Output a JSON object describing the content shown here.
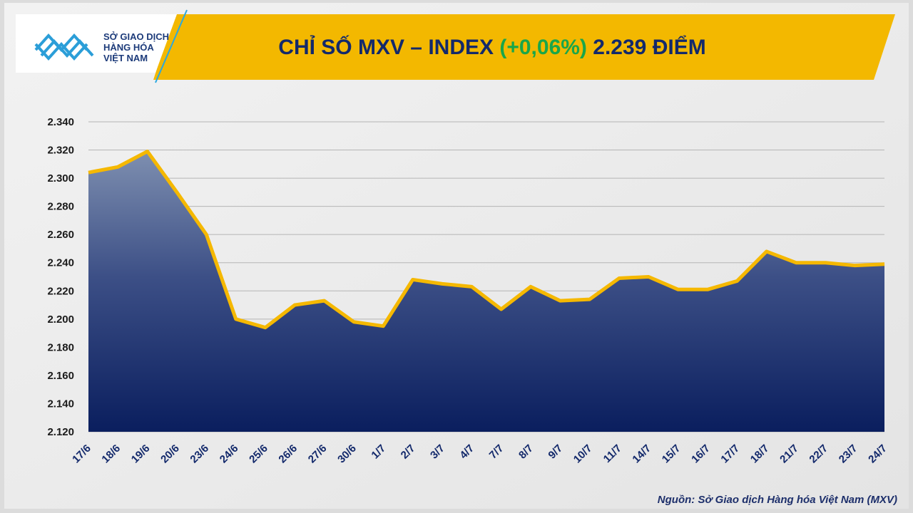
{
  "header": {
    "logo_lines": [
      "SỞ GIAO DỊCH",
      "HÀNG HÓA",
      "VIỆT NAM"
    ],
    "title": {
      "prefix": "CHỈ SỐ MXV – INDEX",
      "change": "(+0,06%)",
      "suffix": "2.239 ĐIỂM"
    }
  },
  "chart_data": {
    "type": "line",
    "color": "#f5b800",
    "area": true,
    "grid": true,
    "categories": [
      "17/6",
      "18/6",
      "19/6",
      "20/6",
      "23/6",
      "24/6",
      "25/6",
      "26/6",
      "27/6",
      "30/6",
      "1/7",
      "2/7",
      "3/7",
      "4/7",
      "7/7",
      "8/7",
      "9/7",
      "10/7",
      "11/7",
      "14/7",
      "15/7",
      "16/7",
      "17/7",
      "18/7",
      "21/7",
      "22/7",
      "23/7",
      "24/7"
    ],
    "values": [
      2304,
      2308,
      2319,
      2290,
      2260,
      2200,
      2194,
      2210,
      2213,
      2198,
      2195,
      2228,
      2225,
      2223,
      2207,
      2223,
      2213,
      2214,
      2229,
      2230,
      2221,
      2221,
      2227,
      2248,
      2240,
      2240,
      2238,
      2239
    ],
    "ylim": [
      2120,
      2340
    ],
    "yticks": [
      {
        "value": 2120,
        "label": "2.120"
      },
      {
        "value": 2140,
        "label": "2.140"
      },
      {
        "value": 2160,
        "label": "2.160"
      },
      {
        "value": 2180,
        "label": "2.180"
      },
      {
        "value": 2200,
        "label": "2.200"
      },
      {
        "value": 2220,
        "label": "2.220"
      },
      {
        "value": 2240,
        "label": "2.240"
      },
      {
        "value": 2260,
        "label": "2.260"
      },
      {
        "value": 2280,
        "label": "2.280"
      },
      {
        "value": 2300,
        "label": "2.300"
      },
      {
        "value": 2320,
        "label": "2.320"
      },
      {
        "value": 2340,
        "label": "2.340"
      }
    ]
  },
  "source": "Nguồn: Sở Giao dịch Hàng hóa Việt Nam (MXV)"
}
